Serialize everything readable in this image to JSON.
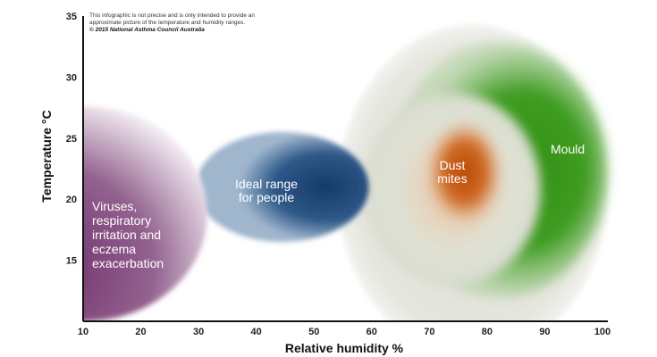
{
  "chart_data": {
    "type": "bubble-region",
    "xlabel": "Relative humidity %",
    "ylabel": "Temperature °C",
    "xlim": [
      10,
      100
    ],
    "ylim": [
      10,
      35
    ],
    "xticks": [
      10,
      20,
      30,
      40,
      50,
      60,
      70,
      80,
      90,
      100
    ],
    "yticks": [
      15,
      20,
      25,
      30,
      35
    ],
    "grid": false,
    "note": {
      "line1": "This infographic is not precise and is only intended to provide an",
      "line2": "approximate picture of the temperature and humidity ranges.",
      "copyright": "© 2015 National Asthma Council Australia"
    },
    "regions": [
      {
        "name": "Mould outer",
        "label": "",
        "cx": 77.5,
        "cy": 20.7,
        "rx": 23.4,
        "ry": 13.6,
        "color": "#e4e4dc"
      },
      {
        "name": "Mould",
        "label": [
          "Mould"
        ],
        "cx": 82.3,
        "cy": 22.4,
        "rx": 18.6,
        "ry": 10.5,
        "color": "#3a9a1e"
      },
      {
        "name": "Dust mites outer",
        "label": "",
        "cx": 74,
        "cy": 20.8,
        "rx": 15.3,
        "ry": 7.9,
        "color": "#dfe3d6"
      },
      {
        "name": "Dust mites",
        "label": [
          "Dust",
          "mites"
        ],
        "cx": 76.1,
        "cy": 22.2,
        "rx": 7,
        "ry": 4.5,
        "color": "#c2520c"
      },
      {
        "name": "Ideal range for people",
        "label": [
          "Ideal range",
          "for people"
        ],
        "cx": 44.5,
        "cy": 21.0,
        "rx": 15,
        "ry": 4.5,
        "color": "#1e4777"
      },
      {
        "name": "Viruses",
        "label": [
          "Viruses,",
          "respiratory",
          "irritation and",
          "eczema",
          "exacerbation"
        ],
        "cx": 10.3,
        "cy": 18.8,
        "rx": 21.2,
        "ry": 8.8,
        "color": "#6e2e6a"
      }
    ]
  }
}
